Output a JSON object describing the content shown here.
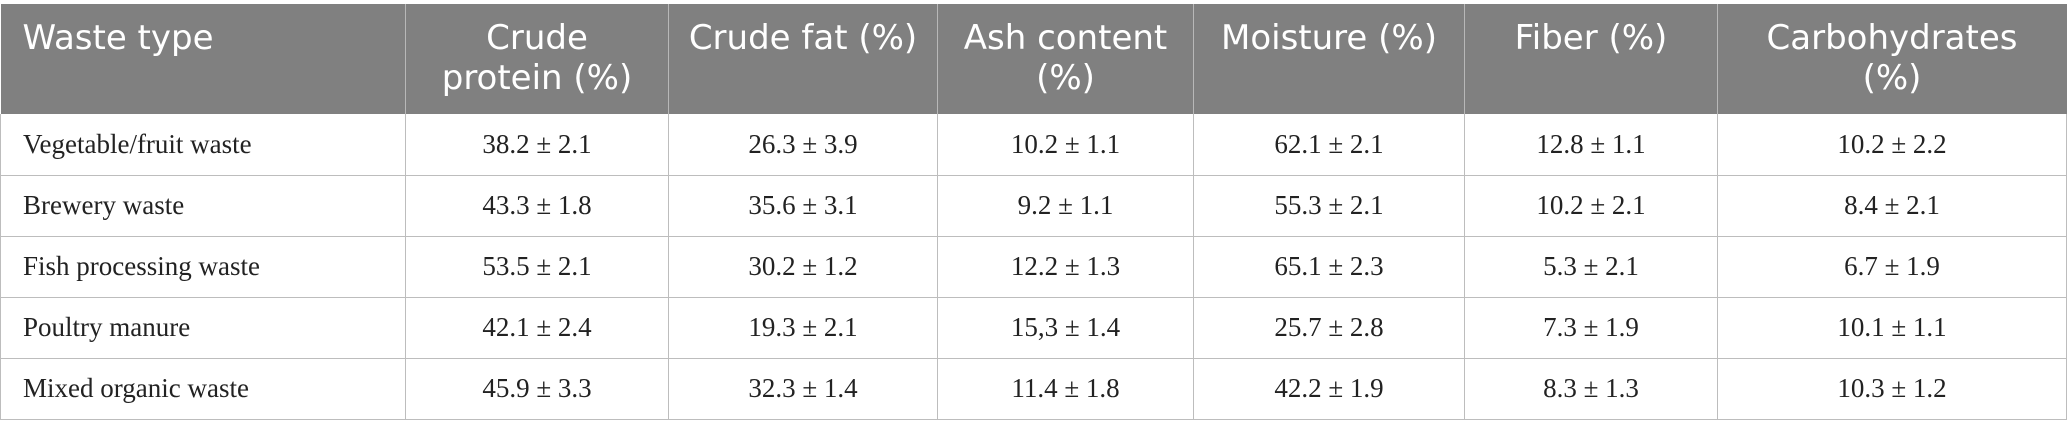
{
  "table": {
    "headers": [
      "Waste type",
      "Crude protein (%)",
      "Crude fat (%)",
      "Ash content (%)",
      "Moisture (%)",
      "Fiber (%)",
      "Carbohydrates (%)"
    ],
    "rows": [
      [
        "Vegetable/fruit waste",
        "38.2 ± 2.1",
        "26.3 ± 3.9",
        "10.2 ± 1.1",
        "62.1 ± 2.1",
        "12.8 ± 1.1",
        "10.2 ± 2.2"
      ],
      [
        "Brewery waste",
        "43.3 ± 1.8",
        "35.6 ± 3.1",
        "9.2 ± 1.1",
        "55.3 ± 2.1",
        "10.2 ± 2.1",
        "8.4 ± 2.1"
      ],
      [
        "Fish processing waste",
        "53.5 ± 2.1",
        "30.2 ± 1.2",
        "12.2 ± 1.3",
        "65.1 ± 2.3",
        "5.3 ± 2.1",
        "6.7 ± 1.9"
      ],
      [
        "Poultry manure",
        "42.1 ± 2.4",
        "19.3 ± 2.1",
        "15,3 ± 1.4",
        "25.7 ± 2.8",
        "7.3 ± 1.9",
        "10.1 ± 1.1"
      ],
      [
        "Mixed organic waste",
        "45.9 ± 3.3",
        "32.3 ± 1.4",
        "11.4 ± 1.8",
        "42.2 ± 1.9",
        "8.3 ± 1.3",
        "10.3 ± 1.2"
      ]
    ]
  },
  "colors": {
    "header_bg": "#808080",
    "header_text": "#ffffff",
    "grid_line": "#bdbdbd"
  }
}
